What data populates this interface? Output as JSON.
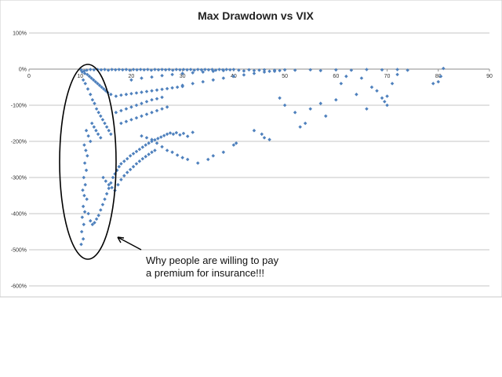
{
  "chart_data": {
    "type": "scatter",
    "title": "Max Drawdown vs VIX",
    "xlabel": "",
    "ylabel": "",
    "xlim": [
      0,
      90
    ],
    "ylim": [
      -600,
      100
    ],
    "x_ticks": [
      0,
      10,
      20,
      30,
      40,
      50,
      60,
      70,
      80,
      90
    ],
    "y_ticks": [
      100,
      0,
      -100,
      -200,
      -300,
      -400,
      -500,
      -600
    ],
    "y_tick_labels": [
      "100%",
      "0%",
      "-100%",
      "-200%",
      "-300%",
      "-400%",
      "-500%",
      "-600%"
    ],
    "grid": "horizontal",
    "legend": "none",
    "point_color": "#4f81bd",
    "series": [
      {
        "values": [
          [
            10.2,
            -2
          ],
          [
            10.8,
            -5
          ],
          [
            11.3,
            -3
          ],
          [
            12,
            -1
          ],
          [
            12.7,
            -2
          ],
          [
            13.4,
            -1
          ],
          [
            14.1,
            -2
          ],
          [
            14.8,
            -1
          ],
          [
            15.5,
            -3
          ],
          [
            16.2,
            -1
          ],
          [
            16.9,
            -2
          ],
          [
            17.6,
            -1
          ],
          [
            18.3,
            -2
          ],
          [
            19,
            -1
          ],
          [
            19.7,
            -3
          ],
          [
            20.4,
            -1
          ],
          [
            21.1,
            -2
          ],
          [
            21.8,
            -1
          ],
          [
            22.5,
            -2
          ],
          [
            23.2,
            -1
          ],
          [
            23.9,
            -3
          ],
          [
            24.6,
            -1
          ],
          [
            25.3,
            -2
          ],
          [
            26,
            -1
          ],
          [
            26.7,
            -2
          ],
          [
            27.4,
            -1
          ],
          [
            28.1,
            -3
          ],
          [
            28.8,
            -1
          ],
          [
            29.5,
            -2
          ],
          [
            30.2,
            -1
          ],
          [
            30.9,
            -2
          ],
          [
            31.6,
            -1
          ],
          [
            32.3,
            -3
          ],
          [
            33,
            -1
          ],
          [
            33.7,
            -2
          ],
          [
            34.4,
            -1
          ],
          [
            35.1,
            -2
          ],
          [
            35.8,
            -1
          ],
          [
            36.5,
            -3
          ],
          [
            37.2,
            -1
          ],
          [
            37.9,
            -2
          ],
          [
            38.6,
            -1
          ],
          [
            39.3,
            -2
          ],
          [
            40,
            -1
          ],
          [
            41,
            -3
          ],
          [
            42,
            -5
          ],
          [
            43,
            -2
          ],
          [
            44,
            -4
          ],
          [
            45,
            -3
          ],
          [
            46,
            -2
          ],
          [
            47,
            -6
          ],
          [
            48,
            -3
          ],
          [
            49,
            -4
          ],
          [
            50,
            -2
          ],
          [
            52,
            -3
          ],
          [
            55,
            -2
          ],
          [
            57,
            -4
          ],
          [
            60,
            -2
          ],
          [
            63,
            -3
          ],
          [
            66,
            -1
          ],
          [
            69,
            -2
          ],
          [
            72,
            -1
          ],
          [
            74,
            -3
          ],
          [
            81,
            2
          ],
          [
            10.4,
            -8
          ],
          [
            10.9,
            -12
          ],
          [
            11.4,
            -15
          ],
          [
            11.8,
            -20
          ],
          [
            12.2,
            -25
          ],
          [
            12.6,
            -30
          ],
          [
            13,
            -35
          ],
          [
            13.4,
            -40
          ],
          [
            13.8,
            -45
          ],
          [
            14.2,
            -50
          ],
          [
            14.6,
            -55
          ],
          [
            15,
            -60
          ],
          [
            15.4,
            -65
          ],
          [
            10.6,
            -30
          ],
          [
            11,
            -40
          ],
          [
            11.5,
            -55
          ],
          [
            12,
            -70
          ],
          [
            12.4,
            -85
          ],
          [
            12.8,
            -95
          ],
          [
            13.2,
            -110
          ],
          [
            13.6,
            -120
          ],
          [
            14,
            -130
          ],
          [
            14.4,
            -140
          ],
          [
            14.8,
            -150
          ],
          [
            15.2,
            -160
          ],
          [
            15.6,
            -170
          ],
          [
            16,
            -180
          ],
          [
            12.3,
            -150
          ],
          [
            12.7,
            -160
          ],
          [
            13.1,
            -170
          ],
          [
            13.5,
            -180
          ],
          [
            14,
            -190
          ],
          [
            11.2,
            -170
          ],
          [
            11.6,
            -185
          ],
          [
            12,
            -200
          ],
          [
            10.8,
            -210
          ],
          [
            11.1,
            -225
          ],
          [
            11.4,
            -240
          ],
          [
            10.9,
            -260
          ],
          [
            11.2,
            -280
          ],
          [
            10.7,
            -300
          ],
          [
            11,
            -320
          ],
          [
            10.5,
            -335
          ],
          [
            10.8,
            -350
          ],
          [
            11.3,
            -360
          ],
          [
            10.6,
            -380
          ],
          [
            10.9,
            -395
          ],
          [
            10.4,
            -410
          ],
          [
            10.7,
            -430
          ],
          [
            10.3,
            -450
          ],
          [
            10.6,
            -470
          ],
          [
            10.2,
            -485
          ],
          [
            11.6,
            -400
          ],
          [
            12,
            -420
          ],
          [
            12.4,
            -430
          ],
          [
            12.8,
            -425
          ],
          [
            13.2,
            -415
          ],
          [
            13.6,
            -405
          ],
          [
            14,
            -390
          ],
          [
            14.4,
            -375
          ],
          [
            14.8,
            -360
          ],
          [
            15.2,
            -345
          ],
          [
            15.6,
            -330
          ],
          [
            16,
            -315
          ],
          [
            16.4,
            -300
          ],
          [
            16.8,
            -290
          ],
          [
            17.2,
            -280
          ],
          [
            17.6,
            -270
          ],
          [
            18,
            -262
          ],
          [
            18.6,
            -255
          ],
          [
            19.2,
            -248
          ],
          [
            19.8,
            -240
          ],
          [
            20.4,
            -234
          ],
          [
            21,
            -228
          ],
          [
            21.6,
            -222
          ],
          [
            22.2,
            -216
          ],
          [
            22.8,
            -210
          ],
          [
            23.4,
            -205
          ],
          [
            24,
            -200
          ],
          [
            24.6,
            -196
          ],
          [
            25.2,
            -192
          ],
          [
            25.8,
            -188
          ],
          [
            26.4,
            -184
          ],
          [
            27,
            -180
          ],
          [
            27.6,
            -177
          ],
          [
            28.2,
            -180
          ],
          [
            28.8,
            -176
          ],
          [
            29.5,
            -182
          ],
          [
            30.2,
            -178
          ],
          [
            31,
            -186
          ],
          [
            32,
            -175
          ],
          [
            14.5,
            -300
          ],
          [
            15,
            -310
          ],
          [
            15.6,
            -320
          ],
          [
            16.2,
            -328
          ],
          [
            16.8,
            -336
          ],
          [
            17.4,
            -320
          ],
          [
            18,
            -306
          ],
          [
            18.6,
            -295
          ],
          [
            19.2,
            -286
          ],
          [
            19.8,
            -278
          ],
          [
            20.4,
            -270
          ],
          [
            21,
            -262
          ],
          [
            21.6,
            -255
          ],
          [
            22.2,
            -248
          ],
          [
            22.8,
            -242
          ],
          [
            23.4,
            -236
          ],
          [
            24,
            -230
          ],
          [
            24.6,
            -225
          ],
          [
            16,
            -70
          ],
          [
            17,
            -75
          ],
          [
            18,
            -72
          ],
          [
            19,
            -70
          ],
          [
            20,
            -68
          ],
          [
            21,
            -66
          ],
          [
            22,
            -64
          ],
          [
            23,
            -62
          ],
          [
            24,
            -60
          ],
          [
            25,
            -58
          ],
          [
            26,
            -56
          ],
          [
            27,
            -54
          ],
          [
            28,
            -52
          ],
          [
            29,
            -50
          ],
          [
            30,
            -48
          ],
          [
            17,
            -120
          ],
          [
            18,
            -115
          ],
          [
            19,
            -110
          ],
          [
            20,
            -105
          ],
          [
            21,
            -100
          ],
          [
            22,
            -95
          ],
          [
            23,
            -90
          ],
          [
            24,
            -85
          ],
          [
            25,
            -82
          ],
          [
            26,
            -78
          ],
          [
            20,
            -30
          ],
          [
            22,
            -25
          ],
          [
            24,
            -22
          ],
          [
            26,
            -18
          ],
          [
            28,
            -15
          ],
          [
            30,
            -12
          ],
          [
            32,
            -10
          ],
          [
            34,
            -8
          ],
          [
            36,
            -6
          ],
          [
            38,
            -4
          ],
          [
            30,
            -45
          ],
          [
            32,
            -40
          ],
          [
            34,
            -35
          ],
          [
            36,
            -30
          ],
          [
            38,
            -25
          ],
          [
            40,
            -20
          ],
          [
            42,
            -16
          ],
          [
            44,
            -12
          ],
          [
            46,
            -8
          ],
          [
            48,
            -6
          ],
          [
            33,
            -260
          ],
          [
            35,
            -250
          ],
          [
            36,
            -240
          ],
          [
            38,
            -230
          ],
          [
            40,
            -210
          ],
          [
            40.5,
            -205
          ],
          [
            44,
            -170
          ],
          [
            45.5,
            -180
          ],
          [
            46,
            -190
          ],
          [
            47,
            -195
          ],
          [
            49,
            -80
          ],
          [
            50,
            -100
          ],
          [
            52,
            -120
          ],
          [
            53,
            -160
          ],
          [
            54,
            -150
          ],
          [
            55,
            -110
          ],
          [
            57,
            -95
          ],
          [
            58,
            -130
          ],
          [
            60,
            -85
          ],
          [
            61,
            -40
          ],
          [
            62,
            -20
          ],
          [
            64,
            -70
          ],
          [
            65,
            -25
          ],
          [
            66,
            -110
          ],
          [
            67,
            -50
          ],
          [
            68,
            -60
          ],
          [
            69,
            -80
          ],
          [
            69.5,
            -90
          ],
          [
            70,
            -100
          ],
          [
            70,
            -75
          ],
          [
            71,
            -40
          ],
          [
            72,
            -15
          ],
          [
            79,
            -40
          ],
          [
            80,
            -35
          ],
          [
            80.5,
            -20
          ],
          [
            22,
            -185
          ],
          [
            23,
            -190
          ],
          [
            24,
            -195
          ],
          [
            25,
            -205
          ],
          [
            26,
            -215
          ],
          [
            27,
            -225
          ],
          [
            28,
            -230
          ],
          [
            29,
            -238
          ],
          [
            30,
            -245
          ],
          [
            31,
            -250
          ],
          [
            18,
            -150
          ],
          [
            19,
            -145
          ],
          [
            20,
            -140
          ],
          [
            21,
            -135
          ],
          [
            22,
            -130
          ],
          [
            23,
            -125
          ],
          [
            24,
            -120
          ],
          [
            25,
            -115
          ],
          [
            26,
            -110
          ],
          [
            27,
            -105
          ]
        ]
      }
    ],
    "annotations": [
      {
        "text_lines": [
          "Why people are willing to pay",
          "a premium for insurance!!!"
        ]
      }
    ]
  }
}
